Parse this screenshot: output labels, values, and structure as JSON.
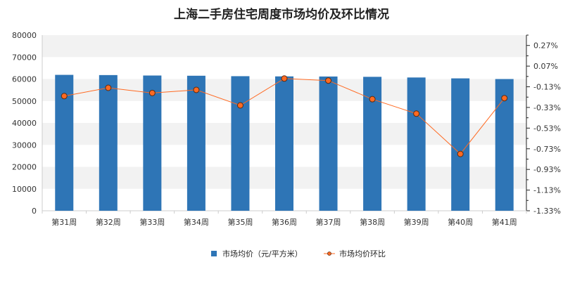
{
  "chart_data": {
    "type": "bar",
    "title": "上海二手房住宅周度市场均价及环比情况",
    "categories": [
      "第31周",
      "第32周",
      "第33周",
      "第34周",
      "第35周",
      "第36周",
      "第37周",
      "第38周",
      "第39周",
      "第40周",
      "第41周"
    ],
    "series": [
      {
        "name": "市场均价（元/平方米）",
        "type": "bar",
        "axis": "left",
        "color": "#2e75b6",
        "values": [
          61900,
          61800,
          61600,
          61500,
          61300,
          61200,
          61150,
          61000,
          60700,
          60300,
          60000
        ]
      },
      {
        "name": "市场均价环比",
        "type": "line",
        "axis": "right",
        "color": "#ff6a22",
        "marker_fill": "#ff6a22",
        "marker_edge": "#5a2a10",
        "values": [
          -0.22,
          -0.14,
          -0.19,
          -0.16,
          -0.31,
          -0.05,
          -0.07,
          -0.25,
          -0.39,
          -0.78,
          -0.24
        ]
      }
    ],
    "y_left": {
      "ylim": [
        0,
        80000
      ],
      "ticks": [
        "0",
        "10000",
        "20000",
        "30000",
        "40000",
        "50000",
        "60000",
        "70000",
        "80000"
      ]
    },
    "y_right": {
      "ylim": [
        -1.33,
        0.37
      ],
      "ticks": [
        "-1.33%",
        "-1.13%",
        "-0.93%",
        "-0.73%",
        "-0.53%",
        "-0.33%",
        "-0.13%",
        "0.07%",
        "0.27%"
      ]
    },
    "grid": "alternating horizontal bands",
    "legend_position": "bottom"
  }
}
